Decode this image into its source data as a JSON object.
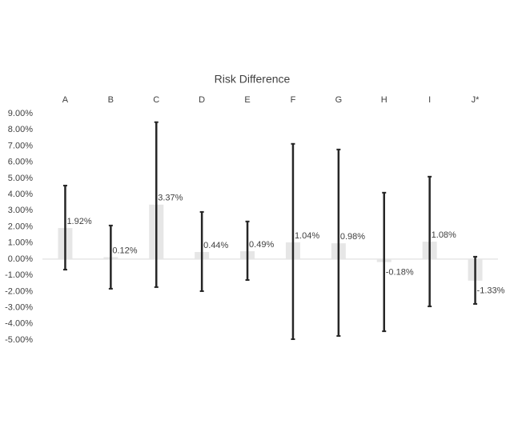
{
  "chart_data": {
    "type": "bar",
    "title": "Risk Difference",
    "categories": [
      "A",
      "B",
      "C",
      "D",
      "E",
      "F",
      "G",
      "H",
      "I",
      "J*"
    ],
    "values": [
      1.92,
      0.12,
      3.37,
      0.44,
      0.49,
      1.04,
      0.98,
      -0.18,
      1.08,
      -1.33
    ],
    "value_labels": [
      "1.92%",
      "0.12%",
      "3.37%",
      "0.44%",
      "0.49%",
      "1.04%",
      "0.98%",
      "-0.18%",
      "1.08%",
      "-1.33%"
    ],
    "ci_upper": [
      4.55,
      2.08,
      8.47,
      2.92,
      2.33,
      7.13,
      6.78,
      4.11,
      5.1,
      0.15
    ],
    "ci_lower": [
      -0.65,
      -1.83,
      -1.73,
      -1.98,
      -1.29,
      -4.95,
      -4.75,
      -4.46,
      -2.92,
      -2.77
    ],
    "color": "#e6e6e6",
    "error_color": "#262626",
    "ylim": [
      -5,
      9
    ],
    "yticks": [
      {
        "value": 9,
        "label": "9.00%"
      },
      {
        "value": 8,
        "label": "8.00%"
      },
      {
        "value": 7,
        "label": "7.00%"
      },
      {
        "value": 6,
        "label": "6.00%"
      },
      {
        "value": 5,
        "label": "5.00%"
      },
      {
        "value": 4,
        "label": "4.00%"
      },
      {
        "value": 3,
        "label": "3.00%"
      },
      {
        "value": 2,
        "label": "2.00%"
      },
      {
        "value": 1,
        "label": "1.00%"
      },
      {
        "value": 0,
        "label": "0.00%"
      },
      {
        "value": -1,
        "label": "-1.00%"
      },
      {
        "value": -2,
        "label": "-2.00%"
      },
      {
        "value": -3,
        "label": "-3.00%"
      },
      {
        "value": -4,
        "label": "-4.00%"
      },
      {
        "value": -5,
        "label": "-5.00%"
      }
    ],
    "grid": false
  }
}
